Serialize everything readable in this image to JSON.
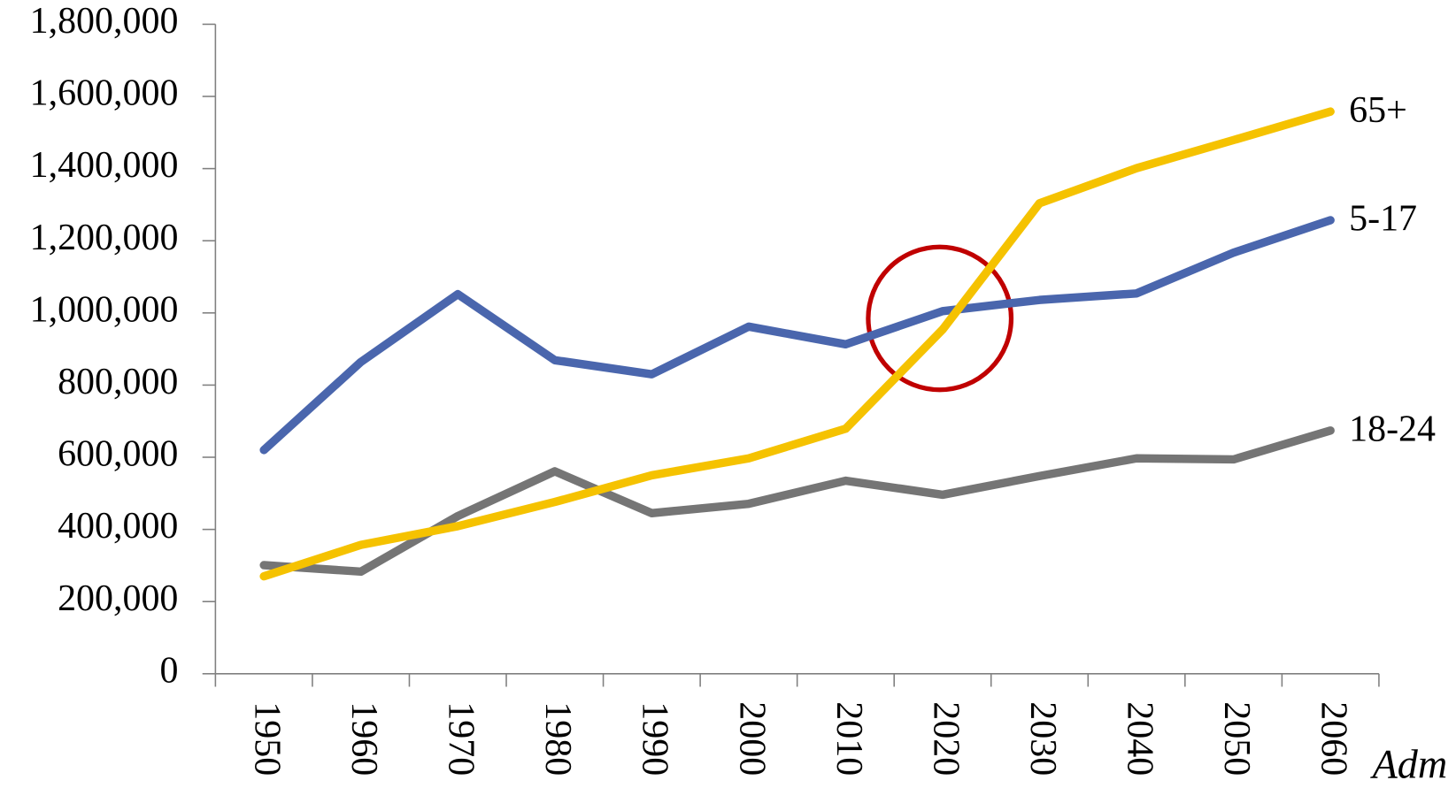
{
  "chart_data": {
    "type": "line",
    "categories": [
      "1950",
      "1960",
      "1970",
      "1980",
      "1990",
      "2000",
      "2010",
      "2020",
      "2030",
      "2040",
      "2050",
      "2060"
    ],
    "series": [
      {
        "name": "5-17",
        "color": "#4a66ad",
        "values": [
          620000,
          864000,
          1052000,
          869000,
          830000,
          962000,
          913000,
          1005000,
          1036000,
          1054000,
          1167000,
          1257000
        ]
      },
      {
        "name": "18-24",
        "color": "#757575",
        "values": [
          301000,
          283000,
          437000,
          561000,
          445000,
          471000,
          535000,
          496000,
          548000,
          597000,
          594000,
          674000
        ]
      },
      {
        "name": "65+",
        "color": "#f5c200",
        "values": [
          270000,
          357000,
          409000,
          476000,
          550000,
          597000,
          679000,
          954000,
          1304000,
          1401000,
          1479000,
          1558000
        ]
      }
    ],
    "ylim": [
      0,
      1800000
    ],
    "yticks": [
      0,
      {
        "value": 200000,
        "label": "200,000"
      },
      {
        "value": 400000,
        "label": "400,000"
      },
      {
        "value": 600000,
        "label": "600,000"
      },
      {
        "value": 800000,
        "label": "800,000"
      },
      {
        "value": 1000000,
        "label": "1,000,000"
      },
      {
        "value": 1200000,
        "label": "1,200,000"
      },
      {
        "value": 1400000,
        "label": "1,400,000"
      },
      {
        "value": 1600000,
        "label": "1,600,000"
      },
      {
        "value": 1800000,
        "label": "1,800,000"
      }
    ],
    "grid": false,
    "watermark": "Adm"
  }
}
